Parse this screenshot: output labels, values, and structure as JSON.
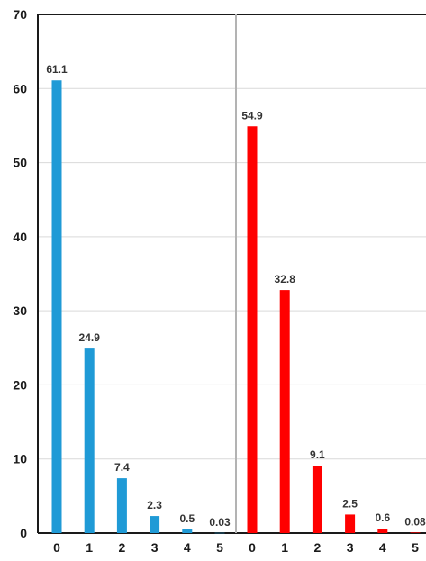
{
  "chart_data": {
    "type": "bar",
    "title": "",
    "xlabel": "",
    "ylabel": "",
    "ylim": [
      0,
      70
    ],
    "yticks": [
      0,
      10,
      20,
      30,
      40,
      50,
      60,
      70
    ],
    "grid": true,
    "legend": "none",
    "groups": [
      {
        "categories": [
          "0",
          "1",
          "2",
          "3",
          "4",
          "5"
        ],
        "values": [
          61.1,
          24.9,
          7.4,
          2.3,
          0.5,
          0.03
        ],
        "labels": [
          "61.1",
          "24.9",
          "7.4",
          "2.3",
          "0.5",
          "0.03"
        ],
        "color": "#1f9ad6"
      },
      {
        "categories": [
          "0",
          "1",
          "2",
          "3",
          "4",
          "5"
        ],
        "values": [
          54.9,
          32.8,
          9.1,
          2.5,
          0.6,
          0.08
        ],
        "labels": [
          "54.9",
          "32.8",
          "9.1",
          "2.5",
          "0.6",
          "0.08"
        ],
        "color": "#ff0000"
      }
    ]
  }
}
